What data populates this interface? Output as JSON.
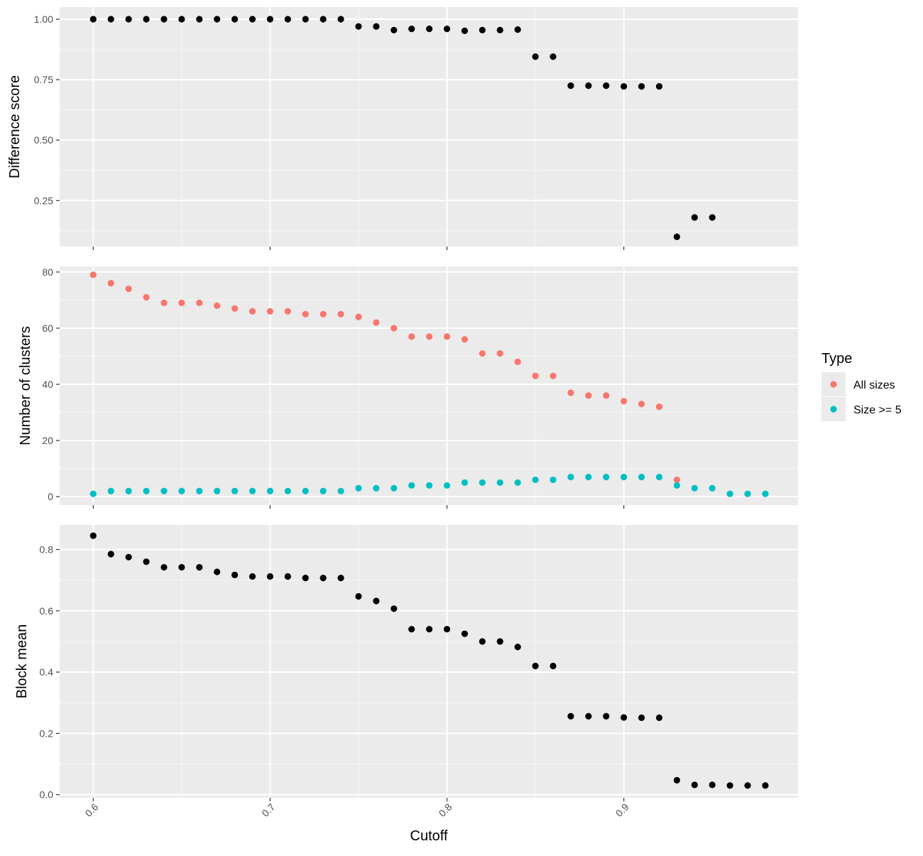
{
  "chart_data": {
    "type": "scatter",
    "xlabel": "Cutoff",
    "x_ticks": [
      "0.6",
      "0.7",
      "0.8",
      "0.9"
    ],
    "x_tick_values": [
      0.6,
      0.7,
      0.8,
      0.9
    ],
    "xlim": [
      0.581,
      0.9985
    ],
    "grid": true,
    "legend": {
      "title": "Type",
      "position": "right",
      "entries": [
        {
          "name": "All sizes",
          "color": "#F8766D"
        },
        {
          "name": "Size >= 5",
          "color": "#00BFC4"
        }
      ]
    },
    "panels": [
      {
        "ylabel": "Difference score",
        "ylim": [
          0.06,
          1.05
        ],
        "y_ticks": [
          "0.25",
          "0.50",
          "0.75",
          "1.00"
        ],
        "y_tick_values": [
          0.25,
          0.5,
          0.75,
          1.0
        ],
        "y_minor_values": [
          0.125,
          0.375,
          0.625,
          0.875
        ],
        "series": [
          {
            "color": "#000000",
            "x": [
              0.6,
              0.61,
              0.62,
              0.63,
              0.64,
              0.65,
              0.66,
              0.67,
              0.68,
              0.69,
              0.7,
              0.71,
              0.72,
              0.73,
              0.74,
              0.75,
              0.76,
              0.77,
              0.78,
              0.79,
              0.8,
              0.81,
              0.82,
              0.83,
              0.84,
              0.85,
              0.86,
              0.87,
              0.88,
              0.89,
              0.9,
              0.91,
              0.92,
              0.93,
              0.94,
              0.95
            ],
            "y": [
              1.0,
              1.0,
              1.0,
              1.0,
              1.0,
              1.0,
              1.0,
              1.0,
              1.0,
              1.0,
              1.0,
              1.0,
              1.0,
              1.0,
              1.0,
              0.97,
              0.97,
              0.955,
              0.96,
              0.96,
              0.96,
              0.952,
              0.955,
              0.955,
              0.957,
              0.845,
              0.845,
              0.725,
              0.725,
              0.725,
              0.722,
              0.722,
              0.722,
              0.1,
              0.18,
              0.18
            ]
          }
        ]
      },
      {
        "ylabel": "Number of clusters",
        "ylim": [
          -3,
          82
        ],
        "y_ticks": [
          "0",
          "20",
          "40",
          "60",
          "80"
        ],
        "y_tick_values": [
          0,
          20,
          40,
          60,
          80
        ],
        "y_minor_values": [
          10,
          30,
          50,
          70
        ],
        "series": [
          {
            "name": "All sizes",
            "color": "#F8766D",
            "x": [
              0.6,
              0.61,
              0.62,
              0.63,
              0.64,
              0.65,
              0.66,
              0.67,
              0.68,
              0.69,
              0.7,
              0.71,
              0.72,
              0.73,
              0.74,
              0.75,
              0.76,
              0.77,
              0.78,
              0.79,
              0.8,
              0.81,
              0.82,
              0.83,
              0.84,
              0.85,
              0.86,
              0.87,
              0.88,
              0.89,
              0.9,
              0.91,
              0.92,
              0.93
            ],
            "y": [
              79,
              76,
              74,
              71,
              69,
              69,
              69,
              68,
              67,
              66,
              66,
              66,
              65,
              65,
              65,
              64,
              62,
              60,
              57,
              57,
              57,
              56,
              51,
              51,
              48,
              43,
              43,
              37,
              36,
              36,
              34,
              33,
              32,
              6
            ]
          },
          {
            "name": "Size >= 5",
            "color": "#00BFC4",
            "x": [
              0.6,
              0.61,
              0.62,
              0.63,
              0.64,
              0.65,
              0.66,
              0.67,
              0.68,
              0.69,
              0.7,
              0.71,
              0.72,
              0.73,
              0.74,
              0.75,
              0.76,
              0.77,
              0.78,
              0.79,
              0.8,
              0.81,
              0.82,
              0.83,
              0.84,
              0.85,
              0.86,
              0.87,
              0.88,
              0.89,
              0.9,
              0.91,
              0.92,
              0.93,
              0.94,
              0.95,
              0.96,
              0.97,
              0.98
            ],
            "y": [
              1,
              2,
              2,
              2,
              2,
              2,
              2,
              2,
              2,
              2,
              2,
              2,
              2,
              2,
              2,
              3,
              3,
              3,
              4,
              4,
              4,
              5,
              5,
              5,
              5,
              6,
              6,
              7,
              7,
              7,
              7,
              7,
              7,
              4,
              3,
              3,
              1,
              1,
              1
            ]
          }
        ]
      },
      {
        "ylabel": "Block mean",
        "ylim": [
          -0.01,
          0.88
        ],
        "y_ticks": [
          "0.0",
          "0.2",
          "0.4",
          "0.6",
          "0.8"
        ],
        "y_tick_values": [
          0.0,
          0.2,
          0.4,
          0.6,
          0.8
        ],
        "y_minor_values": [
          0.1,
          0.3,
          0.5,
          0.7
        ],
        "series": [
          {
            "color": "#000000",
            "x": [
              0.6,
              0.61,
              0.62,
              0.63,
              0.64,
              0.65,
              0.66,
              0.67,
              0.68,
              0.69,
              0.7,
              0.71,
              0.72,
              0.73,
              0.74,
              0.75,
              0.76,
              0.77,
              0.78,
              0.79,
              0.8,
              0.81,
              0.82,
              0.83,
              0.84,
              0.85,
              0.86,
              0.87,
              0.88,
              0.89,
              0.9,
              0.91,
              0.92,
              0.93,
              0.94,
              0.95,
              0.96,
              0.97,
              0.98
            ],
            "y": [
              0.845,
              0.785,
              0.775,
              0.76,
              0.742,
              0.742,
              0.742,
              0.727,
              0.717,
              0.712,
              0.712,
              0.712,
              0.707,
              0.707,
              0.707,
              0.647,
              0.632,
              0.607,
              0.54,
              0.54,
              0.54,
              0.525,
              0.5,
              0.5,
              0.482,
              0.42,
              0.42,
              0.256,
              0.256,
              0.256,
              0.252,
              0.251,
              0.251,
              0.047,
              0.032,
              0.032,
              0.03,
              0.03,
              0.03
            ]
          }
        ]
      }
    ]
  }
}
